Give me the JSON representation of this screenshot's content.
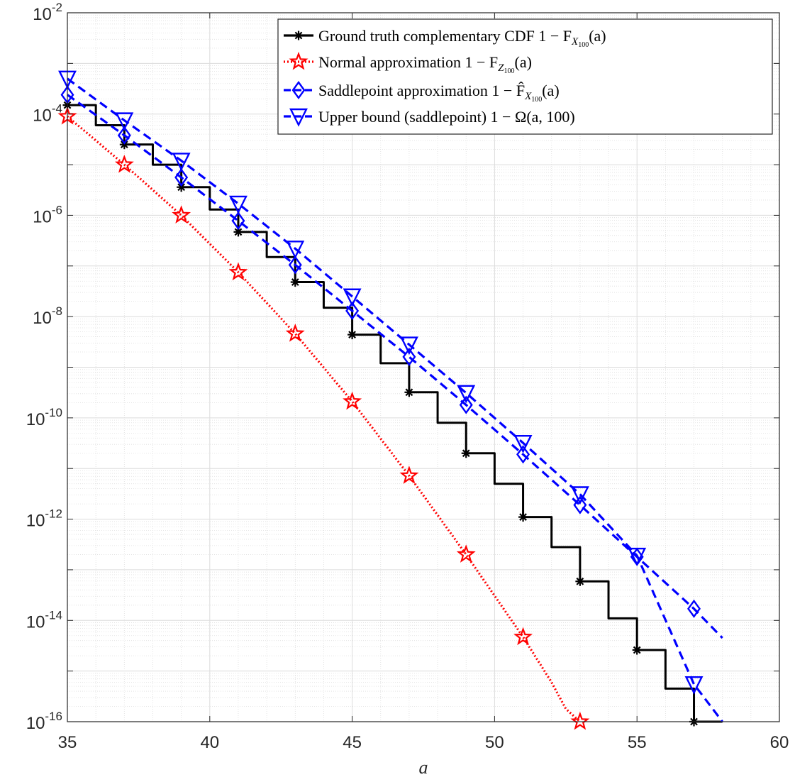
{
  "chart_data": {
    "type": "line",
    "xlabel": "a",
    "ylabel": "",
    "xlim": [
      35,
      60
    ],
    "ylim_log10": [
      -16,
      -2
    ],
    "y_scale": "log",
    "grid": "on, major and minor",
    "legend_position": "top-right",
    "x_ticks": [
      "35",
      "40",
      "45",
      "50",
      "55",
      "60"
    ],
    "y_ticks": [
      {
        "base": "10",
        "exp": "-2"
      },
      {
        "base": "10",
        "exp": "-4"
      },
      {
        "base": "10",
        "exp": "-6"
      },
      {
        "base": "10",
        "exp": "-8"
      },
      {
        "base": "10",
        "exp": "-10"
      },
      {
        "base": "10",
        "exp": "-12"
      },
      {
        "base": "10",
        "exp": "-14"
      },
      {
        "base": "10",
        "exp": "-16"
      }
    ],
    "series": [
      {
        "name": "Ground truth complementary CDF 1 − F_{X_100}(a)",
        "style": "solid-step",
        "color": "#000000",
        "marker": "asterisk",
        "x": [
          35,
          36,
          37,
          38,
          39,
          40,
          41,
          42,
          43,
          44,
          45,
          46,
          47,
          48,
          49,
          50,
          51,
          52,
          53,
          54,
          55,
          56,
          57,
          58
        ],
        "y": [
          0.00015,
          6e-05,
          2.5e-05,
          1e-05,
          3.6e-06,
          1.3e-06,
          4.7e-07,
          1.5e-07,
          4.8e-08,
          1.5e-08,
          4.4e-09,
          1.2e-09,
          3.2e-10,
          8e-11,
          2e-11,
          5e-12,
          1.1e-12,
          2.8e-13,
          5.9e-14,
          1.1e-14,
          2.6e-15,
          4.5e-16,
          1e-16,
          1e-16
        ],
        "marker_x": [
          35,
          37,
          39,
          41,
          43,
          45,
          47,
          49,
          51,
          53,
          55,
          57
        ]
      },
      {
        "name": "Normal approximation 1 − F_{Z_100}(a)",
        "style": "dotted",
        "color": "#ff0000",
        "marker": "pentagram",
        "x": [
          35,
          37,
          39,
          41,
          43,
          45,
          47,
          49,
          51,
          52,
          52.5,
          53
        ],
        "y": [
          9e-05,
          1e-05,
          1e-06,
          7.5e-08,
          4.6e-09,
          2.1e-10,
          7.2e-12,
          2e-13,
          4.7e-15,
          6e-16,
          1.8e-16,
          1e-16
        ],
        "marker_x": [
          35,
          37,
          39,
          41,
          43,
          45,
          47,
          49,
          51,
          53
        ]
      },
      {
        "name": "Saddlepoint approximation 1 − F̂_{X_100}(a)",
        "style": "dashed",
        "color": "#0000ff",
        "marker": "diamond",
        "x": [
          35,
          37,
          39,
          41,
          43,
          45,
          47,
          49,
          51,
          53,
          55,
          57,
          58
        ],
        "y": [
          0.00024,
          3.8e-05,
          5.6e-06,
          7.8e-07,
          1.05e-07,
          1.3e-08,
          1.6e-09,
          1.8e-10,
          1.9e-11,
          1.9e-12,
          1.8e-13,
          1.7e-14,
          4.5e-15
        ],
        "marker_x": [
          35,
          37,
          39,
          41,
          43,
          45,
          47,
          49,
          51,
          53,
          55,
          57
        ]
      },
      {
        "name": "Upper bound (saddlepoint) 1 − Ω̲(a, 100)",
        "style": "dashed",
        "color": "#0000ff",
        "marker": "triangle-down",
        "x": [
          35,
          37,
          39,
          41,
          43,
          45,
          47,
          49,
          51,
          53,
          55,
          57,
          58
        ],
        "y": [
          0.0005,
          7.5e-05,
          1.2e-05,
          1.7e-06,
          2.2e-07,
          2.5e-08,
          2.8e-09,
          3.1e-10,
          3.2e-11,
          3.1e-12,
          1.9e-13,
          5.5e-16,
          1e-16
        ],
        "marker_x": [
          35,
          37,
          39,
          41,
          43,
          45,
          47,
          49,
          51,
          53,
          55,
          57
        ]
      }
    ]
  },
  "legend": {
    "entries": [
      {
        "prefix": "Ground truth complementary CDF 1 − F",
        "sub": "X",
        "subsub": "100",
        "suffix": "(a)"
      },
      {
        "prefix": "Normal approximation 1 − F",
        "sub": "Z",
        "subsub": "100",
        "suffix": "(a)"
      },
      {
        "prefix": "Saddlepoint approximation 1 − F̂",
        "sub": "X",
        "subsub": "100",
        "suffix": "(a)"
      },
      {
        "prefix": "Upper bound (saddlepoint) 1 − Ω",
        "sub": "",
        "subsub": "",
        "suffix": "(a, 100)"
      }
    ]
  }
}
